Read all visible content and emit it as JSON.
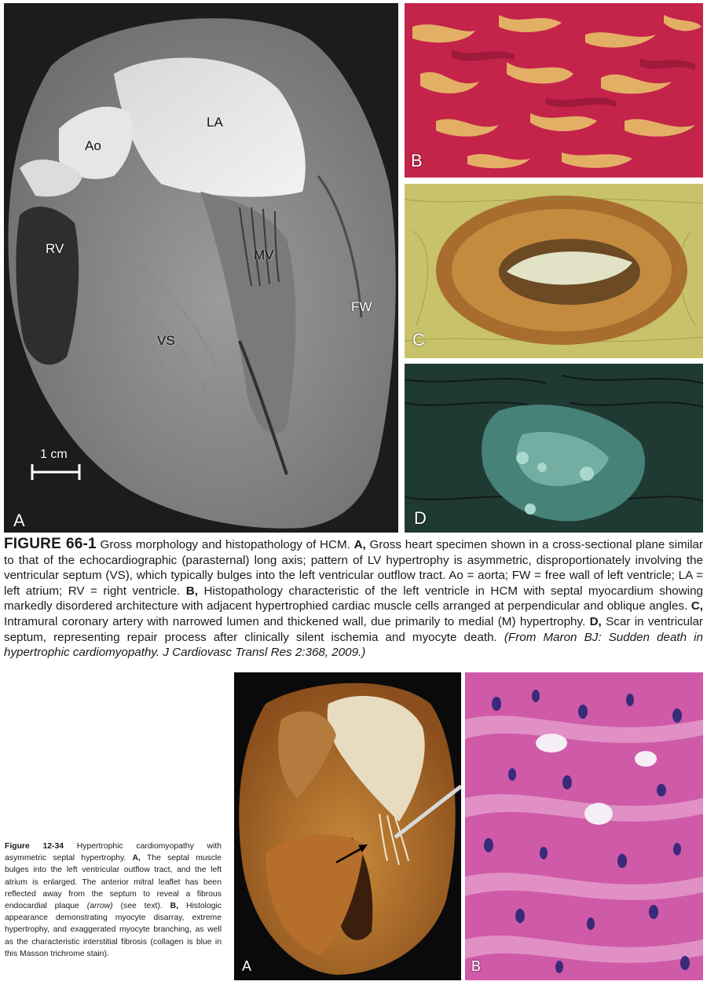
{
  "figure1": {
    "panelA": {
      "label": "A",
      "structures": {
        "ao": "Ao",
        "la": "LA",
        "rv": "RV",
        "mv": "MV",
        "vs": "VS",
        "fw": "FW"
      },
      "scale_bar": "1 cm"
    },
    "panelB": {
      "label": "B"
    },
    "panelC": {
      "label": "C"
    },
    "panelD": {
      "label": "D"
    },
    "caption": {
      "fig_label": "FIGURE 66-1",
      "intro": " Gross morphology and histopathology of HCM. ",
      "a_label": "A,",
      "a_text": " Gross heart specimen shown in a cross-sectional plane similar to that of the echocardiographic (parasternal) long axis; pattern of LV hypertrophy is asymmetric, disproportionately involving the ventricular septum (VS), which typically bulges into the left ventricular outflow tract. Ao = aorta; FW = free wall of left ventricle; LA = left atrium; RV = right ventricle. ",
      "b_label": "B,",
      "b_text": " Histopathology characteristic of the left ventricle in HCM with septal myocardium showing markedly disordered architecture with adjacent hypertrophied cardiac muscle cells arranged at perpendicular and oblique angles. ",
      "c_label": "C,",
      "c_text": " Intramural coronary artery with narrowed lumen and thickened wall, due primarily to medial (M) hypertrophy. ",
      "d_label": "D,",
      "d_text": " Scar in ventricular septum, representing repair process after clinically silent ischemia and myocyte death. ",
      "source": "(From Maron BJ: Sudden death in hypertrophic cardiomyopathy. J Cardiovasc Transl Res 2:368, 2009.)"
    }
  },
  "figure2": {
    "panelA": {
      "label": "A"
    },
    "panelB": {
      "label": "B"
    },
    "caption": {
      "fig_label": "Figure 12-34",
      "intro": " Hypertrophic cardiomyopathy with asymmetric septal hypertrophy. ",
      "a_label": "A,",
      "a_text": " The septal muscle bulges into the left ventricular outflow tract, and the left atrium is enlarged. The anterior mitral leaflet has been reflected away from the septum to reveal a fibrous endocardial plaque ",
      "a_arrow": "(arrow)",
      "a_text2": " (see text). ",
      "b_label": "B,",
      "b_text": " Histologic appearance demonstrating myocyte disarray, extreme hypertrophy, and exaggerated myocyte branching, as well as the characteristic interstitial fibrosis (collagen is blue in this Masson trichrome stain)."
    }
  }
}
